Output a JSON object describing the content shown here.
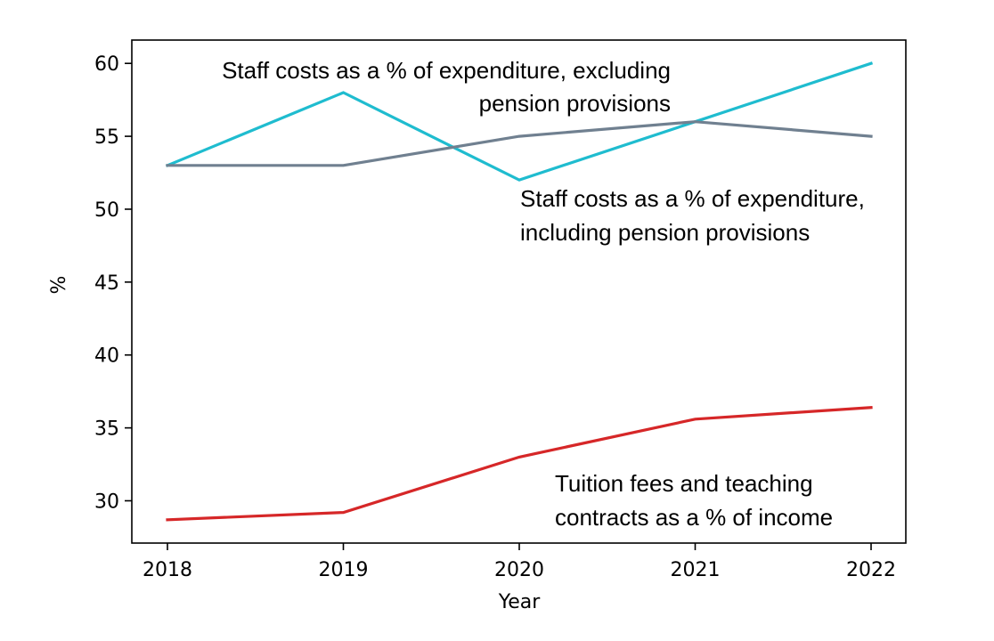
{
  "chart_data": {
    "type": "line",
    "title": "",
    "xlabel": "Year",
    "ylabel": "%",
    "categories": [
      "2018",
      "2019",
      "2020",
      "2021",
      "2022"
    ],
    "yticks": [
      30,
      35,
      40,
      45,
      50,
      55,
      60
    ],
    "ylim": [
      27.1,
      61.6
    ],
    "grid": false,
    "legend": "none",
    "series": [
      {
        "name": "Staff costs as a % of expenditure, excluding pension provisions",
        "color": "#1fbccf",
        "values": [
          53,
          58,
          52,
          56,
          60
        ]
      },
      {
        "name": "Staff costs as a % of expenditure, including pension provisions",
        "color": "#708090",
        "values": [
          53,
          53,
          55,
          56,
          55
        ]
      },
      {
        "name": "Tuition fees and teaching contracts as a % of income",
        "color": "#d62728",
        "values": [
          28.7,
          29.2,
          33.0,
          35.6,
          36.4
        ]
      }
    ],
    "annotations": [
      {
        "lines": [
          "Staff costs as a % of expenditure, excluding",
          "pension provisions"
        ]
      },
      {
        "lines": [
          "Staff costs as a % of expenditure,",
          "including pension provisions"
        ]
      },
      {
        "lines": [
          "Tuition fees and teaching",
          "contracts as a % of income"
        ]
      }
    ]
  }
}
